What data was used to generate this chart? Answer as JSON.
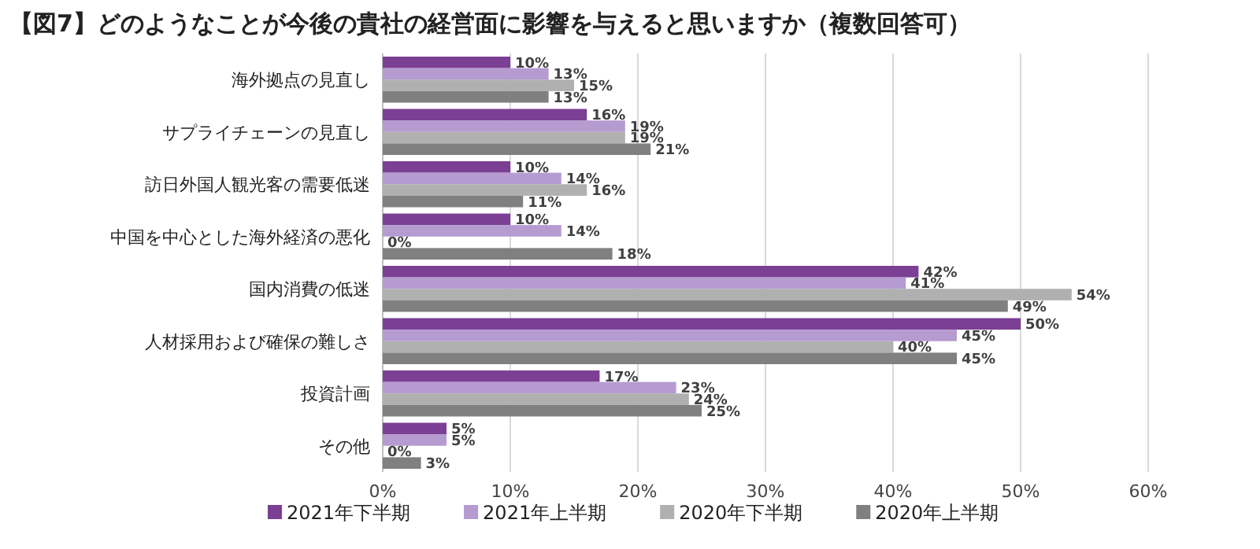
{
  "chart_data": {
    "type": "bar",
    "orientation": "horizontal",
    "title": "【図7】どのようなことが今後の貴社の経営面に影響を与えると思いますか（複数回答可）",
    "categories": [
      "海外拠点の見直し",
      "サプライチェーンの見直し",
      "訪日外国人観光客の需要低迷",
      "中国を中心とした海外経済の悪化",
      "国内消費の低迷",
      "人材採用および確保の難しさ",
      "投資計画",
      "その他"
    ],
    "series": [
      {
        "name": "2021年下半期",
        "color": "#7b3f93",
        "values": [
          10,
          16,
          10,
          10,
          42,
          50,
          17,
          5
        ],
        "value_labels": [
          "10%",
          "16%",
          "10%",
          "10%",
          "42%",
          "50%",
          "17%",
          "5%"
        ]
      },
      {
        "name": "2021年上半期",
        "color": "#b59bd0",
        "values": [
          13,
          19,
          14,
          14,
          41,
          45,
          23,
          5
        ],
        "value_labels": [
          "13%",
          "19%",
          "14%",
          "14%",
          "41%",
          "45%",
          "23%",
          "5%"
        ]
      },
      {
        "name": "2020年下半期",
        "color": "#b0b0b0",
        "values": [
          15,
          19,
          16,
          0,
          54,
          40,
          24,
          0
        ],
        "value_labels": [
          "15%",
          "19%",
          "16%",
          "0%",
          "54%",
          "40%",
          "24%",
          "0%"
        ]
      },
      {
        "name": "2020年上半期",
        "color": "#808080",
        "values": [
          13,
          21,
          11,
          18,
          49,
          45,
          25,
          3
        ],
        "value_labels": [
          "13%",
          "21%",
          "11%",
          "18%",
          "49%",
          "45%",
          "25%",
          "3%"
        ]
      }
    ],
    "xlim": [
      0,
      60
    ],
    "xticks": [
      {
        "value": 0,
        "label": "0%"
      },
      {
        "value": 10,
        "label": "10%"
      },
      {
        "value": 20,
        "label": "20%"
      },
      {
        "value": 30,
        "label": "30%"
      },
      {
        "value": 40,
        "label": "40%"
      },
      {
        "value": 50,
        "label": "50%"
      },
      {
        "value": 60,
        "label": "60%"
      }
    ],
    "grid": "x",
    "legend": "bottom"
  }
}
